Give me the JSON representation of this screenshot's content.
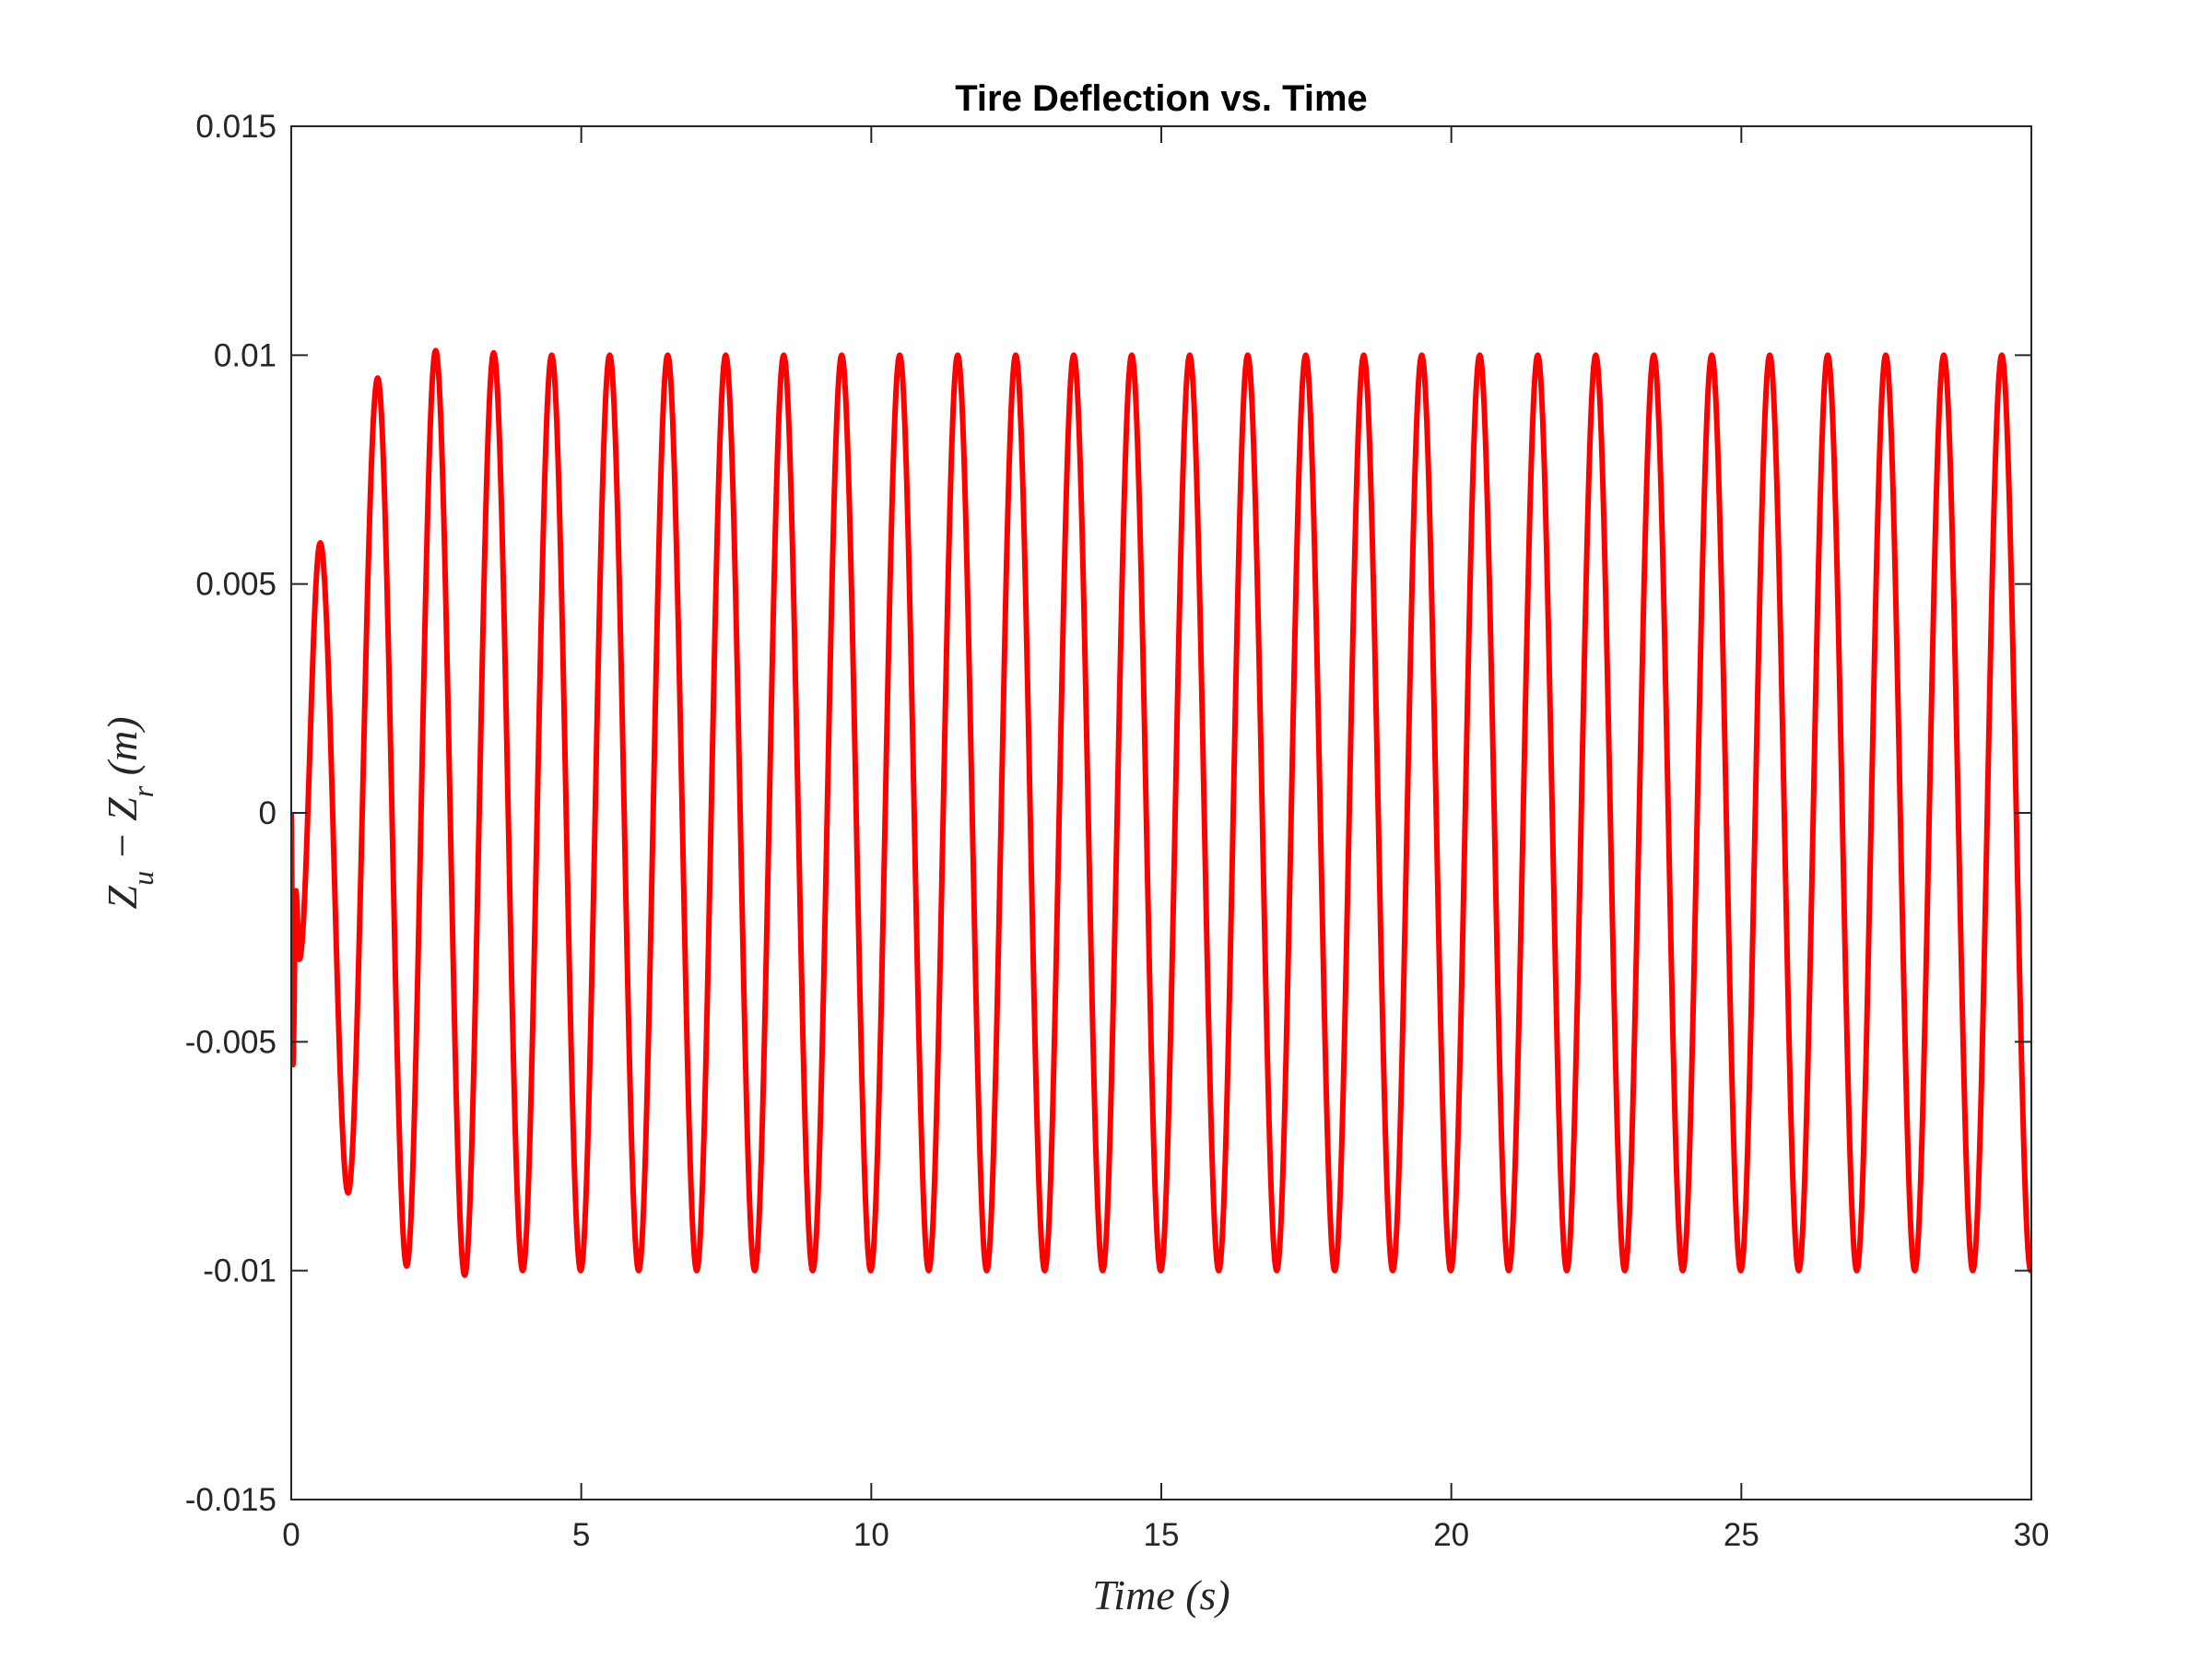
{
  "chart_data": {
    "type": "line",
    "title": "Tire Deflection vs. Time",
    "xlabel": "Time (s)",
    "ylabel": "Z_u − Z_r (m)",
    "ylabel_parts": {
      "a": "Z",
      "a_sub": "u",
      "op": " − ",
      "b": "Z",
      "b_sub": "r",
      "unit": " (m)"
    },
    "xlim": [
      0,
      30
    ],
    "ylim": [
      -0.015,
      0.015
    ],
    "xticks": [
      0,
      5,
      10,
      15,
      20,
      25,
      30
    ],
    "xtick_labels": [
      "0",
      "5",
      "10",
      "15",
      "20",
      "25",
      "30"
    ],
    "yticks": [
      -0.015,
      -0.01,
      -0.005,
      0,
      0.005,
      0.01,
      0.015
    ],
    "ytick_labels": [
      "-0.015",
      "-0.01",
      "-0.005",
      "0",
      "0.005",
      "0.01",
      "0.015"
    ],
    "grid": false,
    "series": [
      {
        "color": "#ff0000",
        "description": "Steady-state sinusoid with period 1 s, amplitude ≈ 0.01 m; early transient peaks listed below",
        "peaks": [
          {
            "x": 0.0,
            "y": 0.0
          },
          {
            "x": 0.03,
            "y": -0.0055
          },
          {
            "x": 0.08,
            "y": -0.0017
          },
          {
            "x": 0.14,
            "y": -0.0032
          },
          {
            "x": 0.5,
            "y": 0.0059
          },
          {
            "x": 0.98,
            "y": -0.0083
          },
          {
            "x": 1.49,
            "y": 0.0095
          },
          {
            "x": 1.99,
            "y": -0.0099
          },
          {
            "x": 2.49,
            "y": 0.0101
          },
          {
            "x": 2.99,
            "y": -0.0101
          },
          {
            "x": 3.49,
            "y": 0.01005
          },
          {
            "x": 3.99,
            "y": -0.01
          }
        ],
        "steady_amplitude": 0.01,
        "period": 1.0,
        "end": {
          "x": 30,
          "y": -0.01
        }
      }
    ],
    "colors": {
      "line": "#ff0000",
      "axes": "#262626"
    }
  }
}
